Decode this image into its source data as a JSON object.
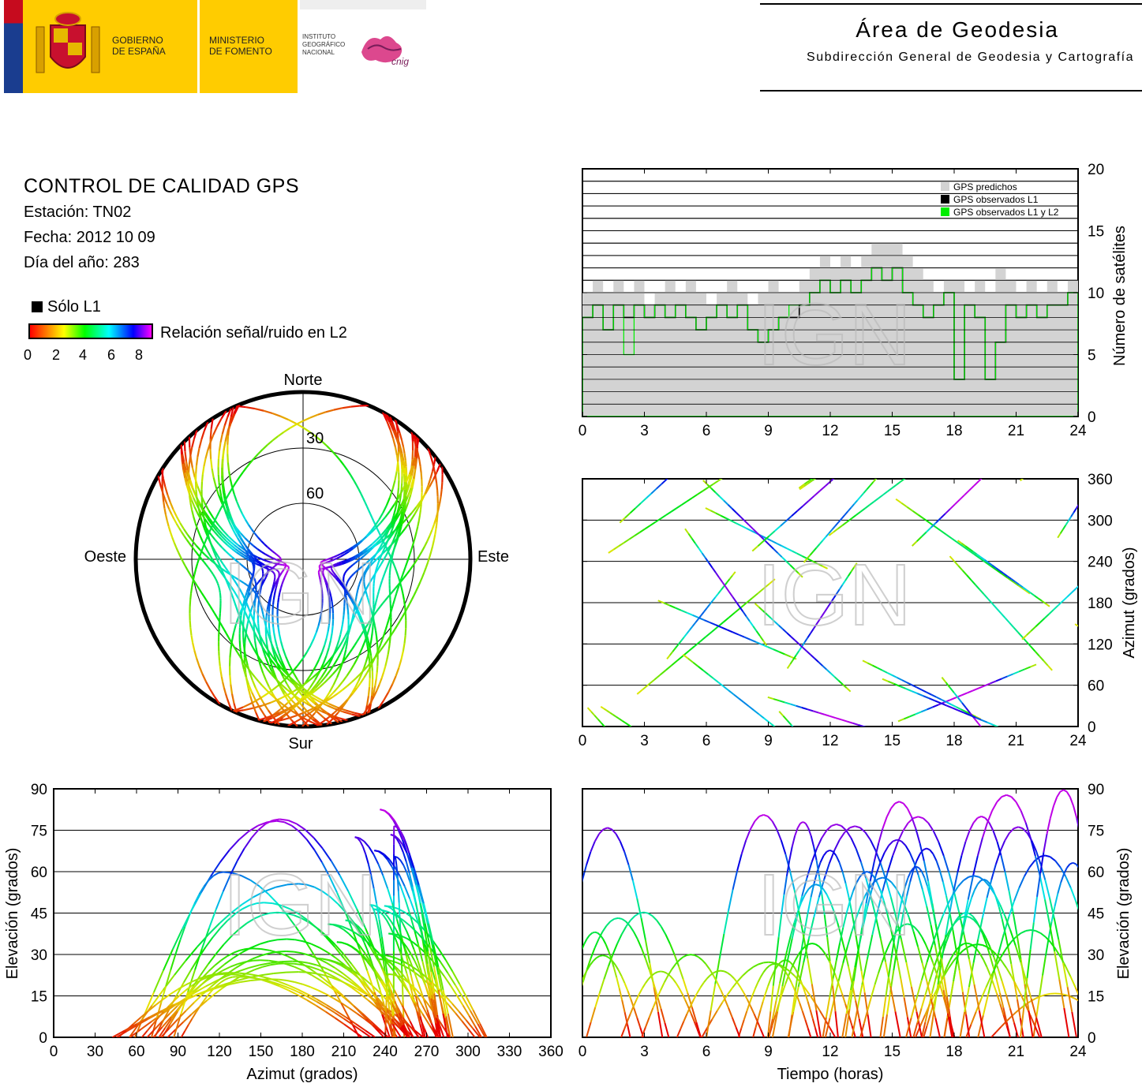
{
  "header": {
    "gov_line1": "GOBIERNO",
    "gov_line2": "DE ESPAÑA",
    "min_line1": "MINISTERIO",
    "min_line2": "DE FOMENTO",
    "ign_line1": "INSTITUTO",
    "ign_line2": "GEOGRÁFICO",
    "ign_line3": "NACIONAL",
    "cnig": "cnig",
    "area_title": "Área de Geodesia",
    "area_subtitle": "Subdirección General de Geodesia y Cartografía"
  },
  "info": {
    "title": "CONTROL DE CALIDAD GPS",
    "station": "Estación: TN02",
    "date": "Fecha: 2012 10 09",
    "doy": "Día del año: 283"
  },
  "colors": {
    "predicted": "#d3d3d3",
    "observed_l1": "#000000",
    "observed_l1l2": "#00ee00",
    "snr_scale": [
      "#ff0000",
      "#ffff00",
      "#00ff00",
      "#00ffff",
      "#0000ff",
      "#ff00ff"
    ]
  },
  "legend": {
    "only_l1": "Sólo L1",
    "snr_label": "Relación señal/ruido en L2",
    "snr_ticks": [
      "0",
      "2",
      "4",
      "6",
      "8"
    ]
  },
  "watermark": "IGN",
  "chart_data": [
    {
      "type": "area",
      "id": "satellite-count",
      "xlabel": "",
      "ylabel": "Número de satélites",
      "xlim": [
        0,
        24
      ],
      "ylim": [
        0,
        20
      ],
      "xticks": [
        "0",
        "3",
        "6",
        "9",
        "12",
        "15",
        "18",
        "21",
        "24"
      ],
      "yticks": [
        "0",
        "5",
        "10",
        "15",
        "20"
      ],
      "grid": true,
      "legend_position": "top-right",
      "x": [
        0,
        0.5,
        1,
        1.5,
        2,
        2.5,
        3,
        3.5,
        4,
        4.5,
        5,
        5.5,
        6,
        6.5,
        7,
        7.5,
        8,
        8.5,
        9,
        9.5,
        10,
        10.5,
        11,
        11.5,
        12,
        12.5,
        13,
        13.5,
        14,
        14.5,
        15,
        15.5,
        16,
        16.5,
        17,
        17.5,
        18,
        18.5,
        19,
        19.5,
        20,
        20.5,
        21,
        21.5,
        22,
        22.5,
        23,
        23.5,
        24
      ],
      "series": [
        {
          "name": "GPS predichos",
          "values": [
            10,
            11,
            10,
            11,
            10,
            11,
            9,
            10,
            11,
            10,
            11,
            10,
            9,
            10,
            11,
            10,
            9,
            10,
            11,
            10,
            10,
            11,
            12,
            13,
            12,
            13,
            12,
            13,
            14,
            14,
            14,
            13,
            12,
            11,
            10,
            11,
            11,
            10,
            11,
            10,
            12,
            11,
            10,
            11,
            10,
            11,
            10,
            11,
            10
          ]
        },
        {
          "name": "GPS observados L1",
          "values": [
            8,
            9,
            7,
            9,
            8,
            9,
            8,
            9,
            8,
            9,
            8,
            7,
            8,
            9,
            8,
            9,
            7,
            6,
            7,
            8,
            8,
            9,
            10,
            11,
            10,
            11,
            10,
            11,
            12,
            11,
            12,
            10,
            9,
            8,
            9,
            10,
            3,
            9,
            8,
            3,
            6,
            9,
            8,
            9,
            8,
            9,
            9,
            10,
            9
          ]
        },
        {
          "name": "GPS observados L1 y L2",
          "values": [
            8,
            9,
            7,
            9,
            5,
            9,
            8,
            9,
            8,
            9,
            8,
            7,
            8,
            9,
            8,
            9,
            7,
            6,
            7,
            8,
            9,
            9,
            10,
            11,
            10,
            11,
            10,
            11,
            12,
            11,
            12,
            10,
            9,
            8,
            9,
            10,
            3,
            9,
            8,
            3,
            6,
            9,
            8,
            9,
            8,
            9,
            9,
            10,
            9
          ]
        }
      ]
    },
    {
      "type": "scatter",
      "id": "skyplot",
      "title": "",
      "labels": [
        "Norte",
        "Este",
        "Sur",
        "Oeste"
      ],
      "rings": [
        "30",
        "60"
      ],
      "rlim": [
        0,
        90
      ]
    },
    {
      "type": "scatter",
      "id": "azimuth-vs-time",
      "xlabel": "",
      "ylabel": "Azimut (grados)",
      "xlim": [
        0,
        24
      ],
      "ylim": [
        0,
        360
      ],
      "xticks": [
        "0",
        "3",
        "6",
        "9",
        "12",
        "15",
        "18",
        "21",
        "24"
      ],
      "yticks": [
        "0",
        "60",
        "120",
        "180",
        "240",
        "300",
        "360"
      ],
      "grid": true
    },
    {
      "type": "scatter",
      "id": "elevation-vs-azimuth",
      "xlabel": "Azimut (grados)",
      "ylabel": "Elevación (grados)",
      "xlim": [
        0,
        360
      ],
      "ylim": [
        0,
        90
      ],
      "xticks": [
        "0",
        "30",
        "60",
        "90",
        "120",
        "150",
        "180",
        "210",
        "240",
        "270",
        "300",
        "330",
        "360"
      ],
      "yticks": [
        "0",
        "15",
        "30",
        "45",
        "60",
        "75",
        "90"
      ],
      "grid": true
    },
    {
      "type": "scatter",
      "id": "elevation-vs-time",
      "xlabel": "Tiempo (horas)",
      "ylabel": "Elevación (grados)",
      "xlim": [
        0,
        24
      ],
      "ylim": [
        0,
        90
      ],
      "xticks": [
        "0",
        "3",
        "6",
        "9",
        "12",
        "15",
        "18",
        "21",
        "24"
      ],
      "yticks": [
        "0",
        "15",
        "30",
        "45",
        "60",
        "75",
        "90"
      ],
      "grid": true
    }
  ]
}
